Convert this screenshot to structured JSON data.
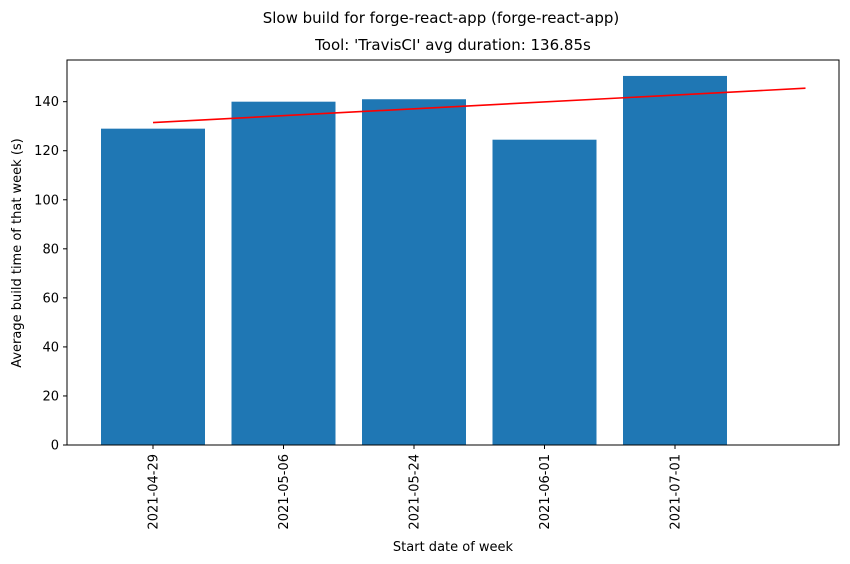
{
  "chart_data": {
    "type": "bar",
    "title": "Slow build for forge-react-app (forge-react-app)",
    "subtitle": "Tool: 'TravisCI' avg duration: 136.85s",
    "xlabel": "Start date of week",
    "ylabel": "Average build time of that week (s)",
    "categories": [
      "2021-04-29",
      "2021-05-06",
      "2021-05-24",
      "2021-06-01",
      "2021-07-01"
    ],
    "values": [
      129,
      140,
      141,
      124.5,
      150.5
    ],
    "ylim": [
      0,
      157
    ],
    "yticks": [
      0,
      20,
      40,
      60,
      80,
      100,
      120,
      140
    ],
    "trend_line": {
      "start": 131.5,
      "end": 145.5,
      "color": "#ff0000"
    },
    "bar_color": "#1f77b4",
    "grid": false,
    "legend": "none"
  }
}
